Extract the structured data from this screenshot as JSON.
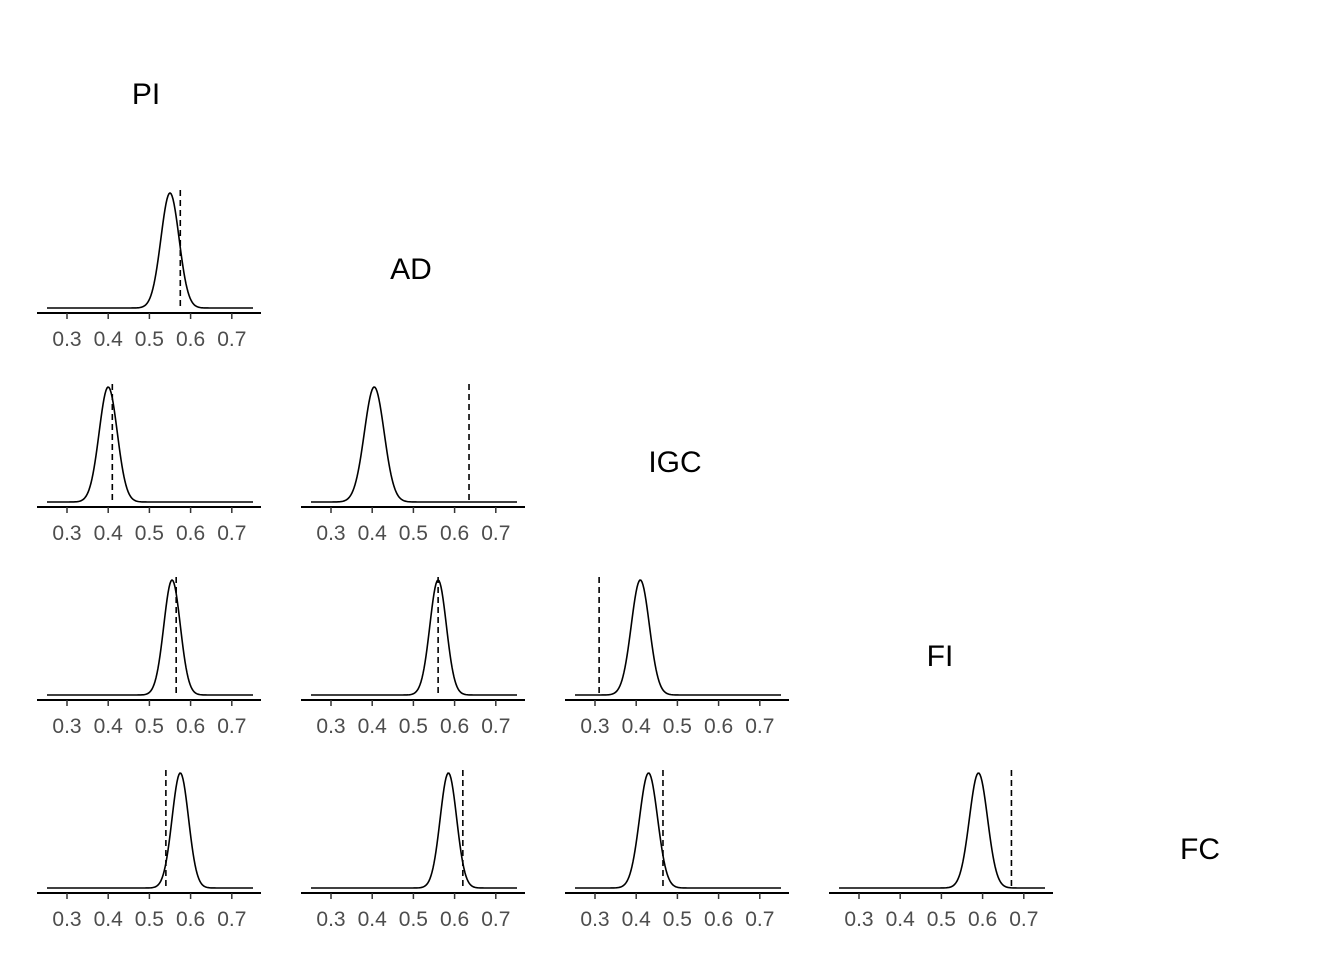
{
  "chart_data": {
    "type": "density-matrix",
    "variables": [
      "PI",
      "AD",
      "IGC",
      "FI",
      "FC"
    ],
    "x_range": [
      0.25,
      0.75
    ],
    "x_ticks": [
      0.3,
      0.4,
      0.5,
      0.6,
      0.7
    ],
    "x_tick_labels": [
      "0.3",
      "0.4",
      "0.5",
      "0.6",
      "0.7"
    ],
    "grid": false,
    "reference_line_style": "dashed",
    "panels": [
      {
        "row": "AD",
        "col": "PI",
        "density_peak": 0.55,
        "density_sd": 0.022,
        "observed": 0.575
      },
      {
        "row": "IGC",
        "col": "PI",
        "density_peak": 0.4,
        "density_sd": 0.022,
        "observed": 0.41
      },
      {
        "row": "IGC",
        "col": "AD",
        "density_peak": 0.405,
        "density_sd": 0.024,
        "observed": 0.635
      },
      {
        "row": "FI",
        "col": "PI",
        "density_peak": 0.555,
        "density_sd": 0.02,
        "observed": 0.565
      },
      {
        "row": "FI",
        "col": "AD",
        "density_peak": 0.56,
        "density_sd": 0.02,
        "observed": 0.56
      },
      {
        "row": "FI",
        "col": "IGC",
        "density_peak": 0.41,
        "density_sd": 0.022,
        "observed": 0.31
      },
      {
        "row": "FC",
        "col": "PI",
        "density_peak": 0.575,
        "density_sd": 0.02,
        "observed": 0.54
      },
      {
        "row": "FC",
        "col": "AD",
        "density_peak": 0.585,
        "density_sd": 0.02,
        "observed": 0.62
      },
      {
        "row": "FC",
        "col": "IGC",
        "density_peak": 0.43,
        "density_sd": 0.022,
        "observed": 0.465
      },
      {
        "row": "FC",
        "col": "FI",
        "density_peak": 0.59,
        "density_sd": 0.022,
        "observed": 0.67
      }
    ]
  }
}
